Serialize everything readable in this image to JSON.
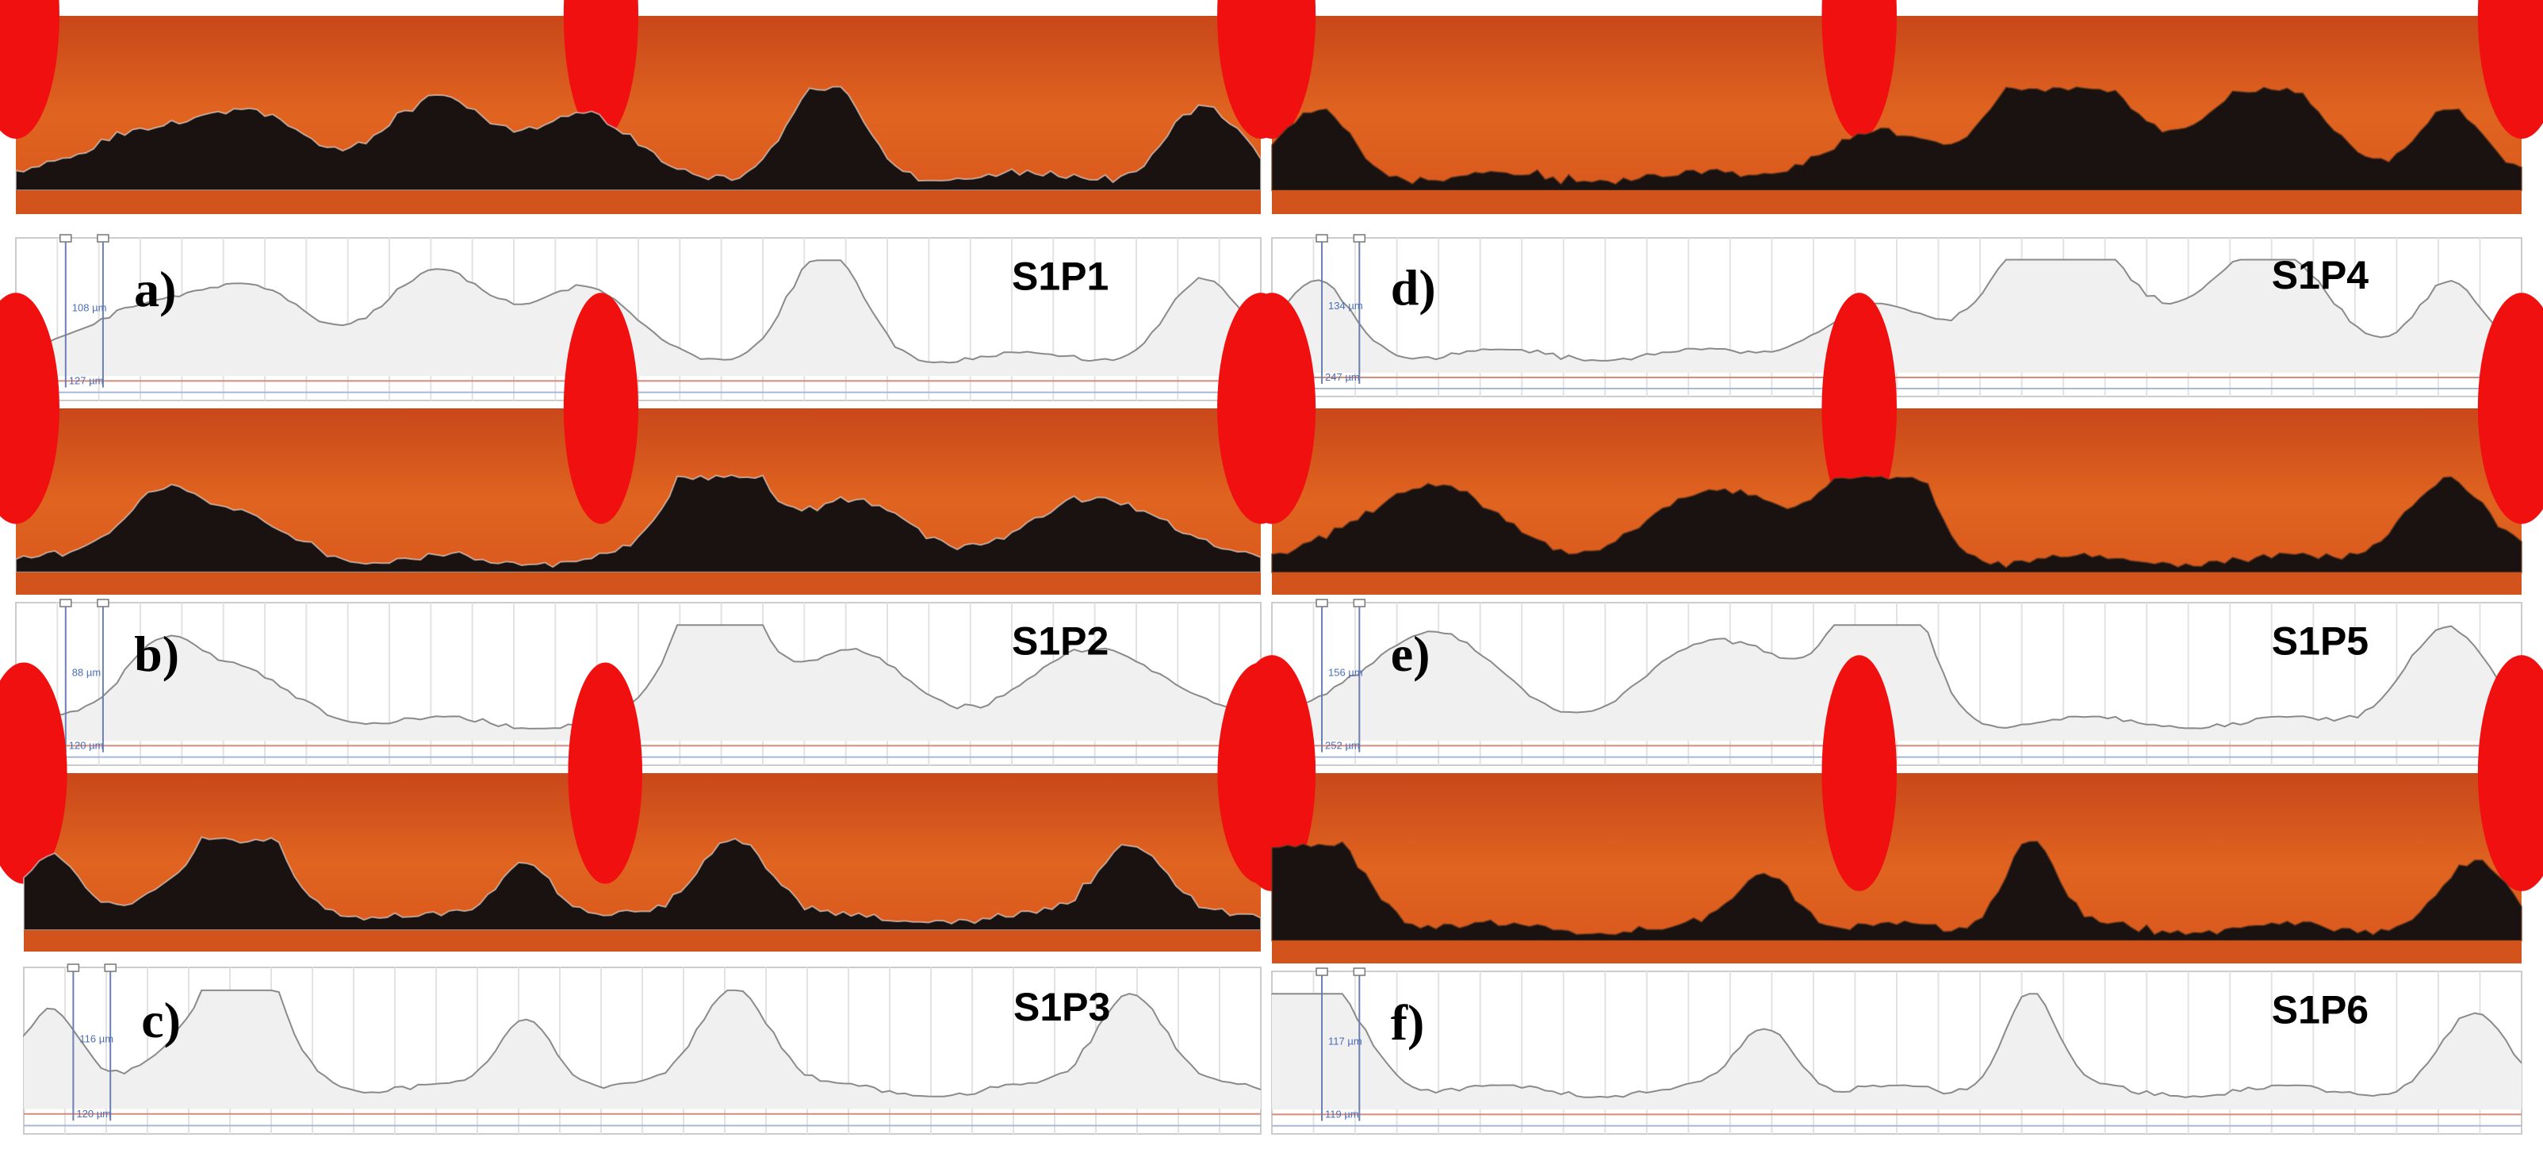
{
  "panels": [
    {
      "label": "a)",
      "sample": "S1P1",
      "height_label": "108 µm",
      "width_label": "127 µm"
    },
    {
      "label": "b)",
      "sample": "S1P2",
      "height_label": "88 µm",
      "width_label": "120 µm"
    },
    {
      "label": "c)",
      "sample": "S1P3",
      "height_label": "116 µm",
      "width_label": "120 µm"
    },
    {
      "label": "d)",
      "sample": "S1P4",
      "height_label": "134 µm",
      "width_label": "247 µm"
    },
    {
      "label": "e)",
      "sample": "S1P5",
      "height_label": "156 µm",
      "width_label": "252 µm"
    },
    {
      "label": "f)",
      "sample": "S1P6",
      "height_label": "117 µm",
      "width_label": "119 µm"
    }
  ]
}
